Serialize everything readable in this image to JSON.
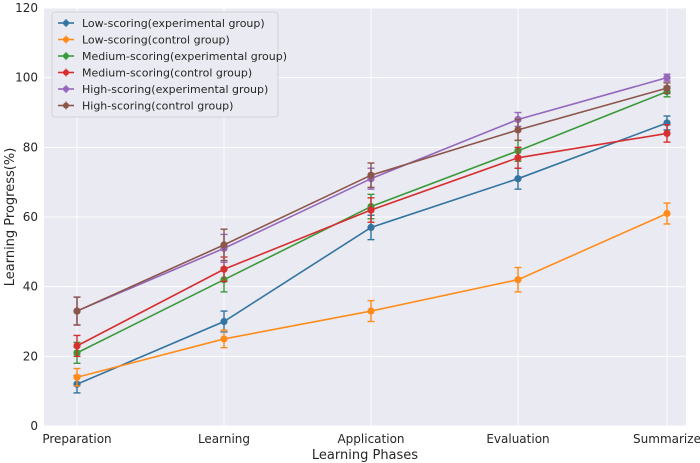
{
  "chart_data": {
    "type": "line",
    "title": "",
    "xlabel": "Learning Phases",
    "ylabel": "Learning Progress(%)",
    "categories": [
      "Preparation",
      "Learning",
      "Application",
      "Evaluation",
      "Summarize"
    ],
    "ylim": [
      0,
      120
    ],
    "yticks": [
      0,
      20,
      40,
      60,
      80,
      100,
      120
    ],
    "grid": true,
    "background": "#eaeaf2",
    "legend_position": "top-left",
    "series": [
      {
        "name": "Low-scoring(experimental group)",
        "color": "#3274a1",
        "values": [
          12,
          30,
          57,
          71,
          87
        ],
        "errors": [
          2.5,
          3,
          3.5,
          3,
          2
        ]
      },
      {
        "name": "Low-scoring(control group)",
        "color": "#ff8c1a",
        "values": [
          14,
          25,
          33,
          42,
          61
        ],
        "errors": [
          2.5,
          2.5,
          3,
          3.5,
          3
        ]
      },
      {
        "name": "Medium-scoring(experimental group)",
        "color": "#3a9a3a",
        "values": [
          21,
          42,
          63,
          79,
          96
        ],
        "errors": [
          3,
          3.5,
          3.5,
          3,
          1.5
        ]
      },
      {
        "name": "Medium-scoring(control group)",
        "color": "#d62f2f",
        "values": [
          23,
          45,
          62,
          77,
          84
        ],
        "errors": [
          3,
          3.5,
          3.5,
          3,
          2.5
        ]
      },
      {
        "name": "High-scoring(experimental group)",
        "color": "#9467bd",
        "values": [
          33,
          51,
          71,
          88,
          100
        ],
        "errors": [
          4,
          4,
          3,
          2,
          1
        ]
      },
      {
        "name": "High-scoring(control group)",
        "color": "#8c564b",
        "values": [
          33,
          52,
          72,
          85,
          97
        ],
        "errors": [
          4,
          4.5,
          3.5,
          3,
          1.5
        ]
      }
    ]
  }
}
